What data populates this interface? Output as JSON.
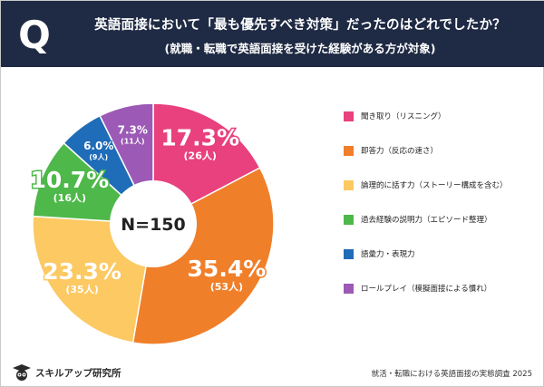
{
  "header": {
    "q_mark": "Q",
    "title": "英語面接において「最も優先すべき対策」だったのはどれでしたか？",
    "subtitle": "(就職・転職で英語面接を受けた経験がある方が対象)"
  },
  "chart_data": {
    "type": "pie",
    "title": "英語面接において「最も優先すべき対策」だったのはどれでしたか？",
    "center_label": "N=150",
    "total": 150,
    "slices": [
      {
        "label": "聞き取り（リスニング）",
        "percent": 17.3,
        "percent_text": "17.3%",
        "count_text": "(26人)",
        "count": 26,
        "color": "#e8417d"
      },
      {
        "label": "即答力（反応の速さ）",
        "percent": 35.4,
        "percent_text": "35.4%",
        "count_text": "(53人)",
        "count": 53,
        "color": "#f07f2a"
      },
      {
        "label": "論理的に話す力（ストーリー構成を含む）",
        "percent": 23.3,
        "percent_text": "23.3%",
        "count_text": "(35人)",
        "count": 35,
        "color": "#fcc962"
      },
      {
        "label": "過去経験の説明力（エピソード整理）",
        "percent": 10.7,
        "percent_text": "10.7%",
        "count_text": "(16人)",
        "count": 16,
        "color": "#4eb84a"
      },
      {
        "label": "語彙力・表現力",
        "percent": 6.0,
        "percent_text": "6.0%",
        "count_text": "(9人)",
        "count": 9,
        "color": "#1f6cb8"
      },
      {
        "label": "ロールプレイ（模擬面接による慣れ）",
        "percent": 7.3,
        "percent_text": "7.3%",
        "count_text": "(11人)",
        "count": 11,
        "color": "#9c59b5"
      }
    ]
  },
  "footer": {
    "brand": "スキルアップ研究所",
    "icon": "graduate-owl-icon",
    "note": "就活・転職における英語面接の実態調査 2025"
  }
}
